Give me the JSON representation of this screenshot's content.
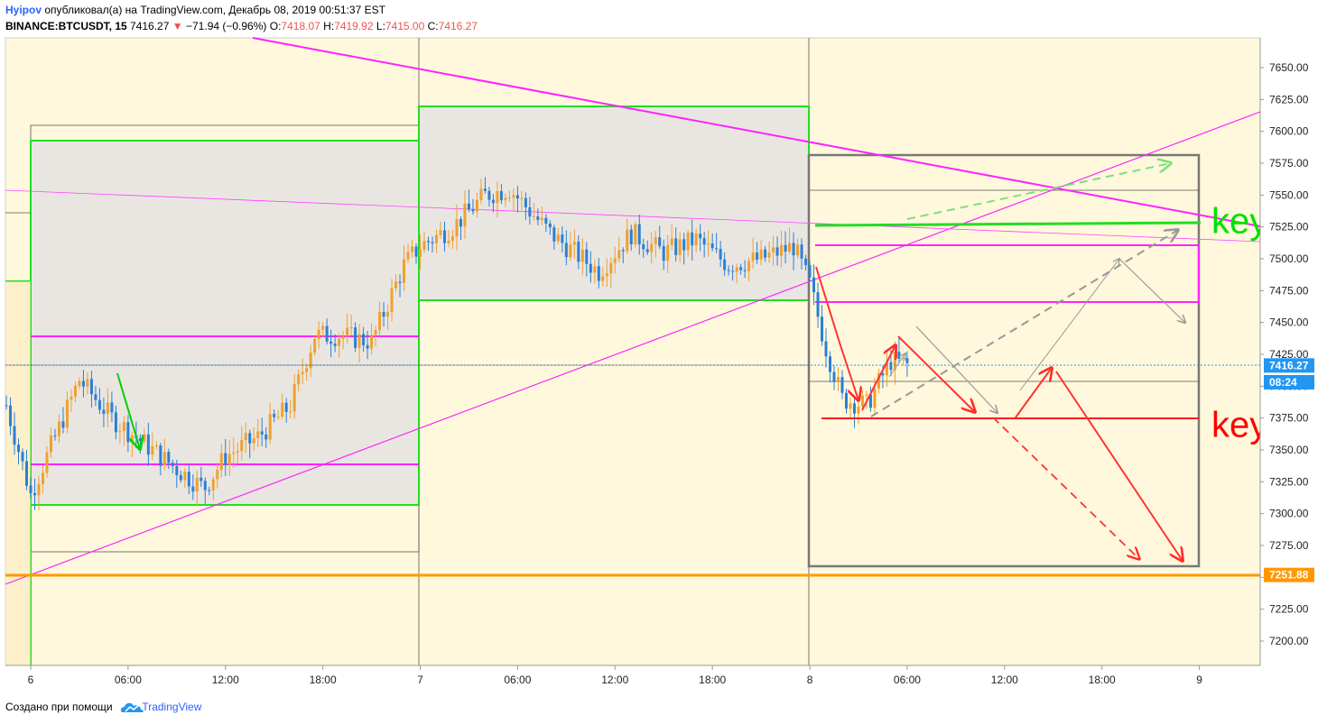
{
  "header": {
    "author": "Hyipov",
    "published_text": "опубликовал(а) на TradingView.com, Декабрь 08, 2019 00:51:37 EST",
    "symbol": "BINANCE:BTCUSDT, 15",
    "last": "7416.27",
    "change_arrow": "▼",
    "change": "−71.94 (−0.96%)",
    "o_label": "O:",
    "o": "7418.07",
    "h_label": "H:",
    "h": "7419.92",
    "l_label": "L:",
    "l": "7415.00",
    "c_label": "C:",
    "c": "7416.27"
  },
  "footer": {
    "text": "Создано при помощи",
    "brand": "TradingView",
    "logo_icon": "tradingview-cloud-icon"
  },
  "chart_data": {
    "type": "candlestick",
    "y_axis": {
      "min": 7180,
      "max": 7670,
      "ticks": [
        7650,
        7625,
        7600,
        7575,
        7550,
        7525,
        7500,
        7475,
        7450,
        7425,
        7400,
        7375,
        7350,
        7325,
        7300,
        7275,
        7250,
        7225,
        7200
      ],
      "tick_labels": [
        "7650.00",
        "7625.00",
        "7600.00",
        "7575.00",
        "7550.00",
        "7525.00",
        "7500.00",
        "7475.00",
        "7450.00",
        "7425.00",
        "7400.00",
        "7375.00",
        "7350.00",
        "7325.00",
        "7300.00",
        "7275.00",
        "7250.00",
        "7225.00",
        "7200.00"
      ]
    },
    "x_axis": {
      "ticks": [
        {
          "t": 0,
          "label": "6"
        },
        {
          "t": 6,
          "label": "06:00"
        },
        {
          "t": 12,
          "label": "12:00"
        },
        {
          "t": 18,
          "label": "18:00"
        },
        {
          "t": 24,
          "label": "7"
        },
        {
          "t": 30,
          "label": "06:00"
        },
        {
          "t": 36,
          "label": "12:00"
        },
        {
          "t": 42,
          "label": "18:00"
        },
        {
          "t": 48,
          "label": "8"
        },
        {
          "t": 54,
          "label": "06:00"
        },
        {
          "t": 60,
          "label": "12:00"
        },
        {
          "t": 66,
          "label": "18:00"
        },
        {
          "t": 72,
          "label": "9"
        }
      ],
      "t_min": -1.5,
      "t_max": 75.7
    },
    "price_badges": [
      {
        "price": 7416.27,
        "label": "7416.27",
        "color": "#2196f3"
      },
      {
        "price": 7405,
        "label": "08:24",
        "color": "#2196f3"
      },
      {
        "price": 7251.88,
        "label": "7251.88",
        "color": "#ff9800"
      }
    ],
    "annotations": [
      {
        "text": "key",
        "price": 7530,
        "t": 74.5,
        "color": "#00e000"
      },
      {
        "text": "key",
        "price": 7370,
        "t": 74.5,
        "color": "#ff0000"
      }
    ],
    "anchors": [
      {
        "t": -1.5,
        "price": 7385
      },
      {
        "t": 0,
        "price": 7315
      },
      {
        "t": 1,
        "price": 7345
      },
      {
        "t": 3,
        "price": 7405
      },
      {
        "t": 5,
        "price": 7375
      },
      {
        "t": 7,
        "price": 7355
      },
      {
        "t": 9,
        "price": 7335
      },
      {
        "t": 10.7,
        "price": 7320
      },
      {
        "t": 12,
        "price": 7345
      },
      {
        "t": 14,
        "price": 7360
      },
      {
        "t": 16,
        "price": 7385
      },
      {
        "t": 17.5,
        "price": 7440
      },
      {
        "t": 19,
        "price": 7440
      },
      {
        "t": 21,
        "price": 7435
      },
      {
        "t": 23,
        "price": 7495
      },
      {
        "t": 24,
        "price": 7510
      },
      {
        "t": 26,
        "price": 7525
      },
      {
        "t": 28,
        "price": 7550
      },
      {
        "t": 29.5,
        "price": 7555
      },
      {
        "t": 32,
        "price": 7520
      },
      {
        "t": 34,
        "price": 7500
      },
      {
        "t": 35,
        "price": 7490
      },
      {
        "t": 37,
        "price": 7520
      },
      {
        "t": 39,
        "price": 7505
      },
      {
        "t": 41,
        "price": 7515
      },
      {
        "t": 43,
        "price": 7495
      },
      {
        "t": 45,
        "price": 7500
      },
      {
        "t": 47,
        "price": 7510
      },
      {
        "t": 48,
        "price": 7480
      },
      {
        "t": 49,
        "price": 7430
      },
      {
        "t": 50,
        "price": 7390
      },
      {
        "t": 51.5,
        "price": 7385
      },
      {
        "t": 53,
        "price": 7420
      },
      {
        "t": 54.2,
        "price": 7416
      }
    ]
  }
}
